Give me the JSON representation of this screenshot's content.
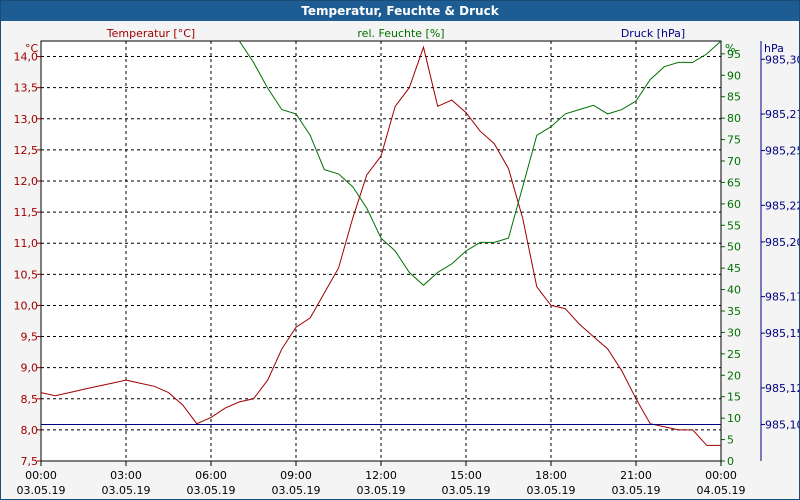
{
  "window": {
    "title": "Temperatur, Feuchte & Druck"
  },
  "colors": {
    "temperature": "#a00000",
    "humidity": "#007000",
    "pressure": "#000080",
    "titlebar": "#1e5d93"
  },
  "chart_data": {
    "type": "line",
    "title": "Temperatur, Feuchte & Druck",
    "grid": true,
    "x_ticks": [
      {
        "time": "00:00",
        "date": "03.05.19"
      },
      {
        "time": "03:00",
        "date": "03.05.19"
      },
      {
        "time": "06:00",
        "date": "03.05.19"
      },
      {
        "time": "09:00",
        "date": "03.05.19"
      },
      {
        "time": "12:00",
        "date": "03.05.19"
      },
      {
        "time": "15:00",
        "date": "03.05.19"
      },
      {
        "time": "18:00",
        "date": "03.05.19"
      },
      {
        "time": "21:00",
        "date": "03.05.19"
      },
      {
        "time": "00:00",
        "date": "04.05.19"
      }
    ],
    "xlim": [
      "03.05.19 00:00",
      "04.05.19 00:00"
    ],
    "axes": {
      "temperature": {
        "label": "Temperatur [°C]",
        "unit": "°C",
        "ylim": [
          7.5,
          14.25
        ],
        "ticks": [
          "7,5",
          "8,0",
          "8,5",
          "9,0",
          "9,5",
          "10,0",
          "10,5",
          "11,0",
          "11,5",
          "12,0",
          "12,5",
          "13,0",
          "13,5",
          "14,0"
        ]
      },
      "humidity": {
        "label": "rel. Feuchte [%]",
        "unit": "%",
        "ylim": [
          0,
          98
        ],
        "ticks": [
          "0",
          "5",
          "10",
          "15",
          "20",
          "25",
          "30",
          "35",
          "40",
          "45",
          "50",
          "55",
          "60",
          "65",
          "70",
          "75",
          "80",
          "85",
          "90",
          "95"
        ]
      },
      "pressure": {
        "label": "Druck [hPa]",
        "unit": "hPa",
        "ylim": [
          985.08,
          985.31
        ],
        "ticks": [
          "985,10",
          "985,12",
          "985,15",
          "985,17",
          "985,20",
          "985,22",
          "985,25",
          "985,27",
          "985,30"
        ]
      }
    },
    "series": [
      {
        "name": "Temperatur [°C]",
        "axis": "temperature",
        "points": [
          [
            "03.05.19 00:00",
            8.6
          ],
          [
            "03.05.19 00:30",
            8.55
          ],
          [
            "03.05.19 01:00",
            8.6
          ],
          [
            "03.05.19 01:30",
            8.65
          ],
          [
            "03.05.19 02:00",
            8.7
          ],
          [
            "03.05.19 02:30",
            8.75
          ],
          [
            "03.05.19 03:00",
            8.8
          ],
          [
            "03.05.19 03:30",
            8.75
          ],
          [
            "03.05.19 04:00",
            8.7
          ],
          [
            "03.05.19 04:30",
            8.6
          ],
          [
            "03.05.19 05:00",
            8.4
          ],
          [
            "03.05.19 05:30",
            8.1
          ],
          [
            "03.05.19 06:00",
            8.2
          ],
          [
            "03.05.19 06:30",
            8.35
          ],
          [
            "03.05.19 07:00",
            8.45
          ],
          [
            "03.05.19 07:30",
            8.5
          ],
          [
            "03.05.19 08:00",
            8.8
          ],
          [
            "03.05.19 08:30",
            9.3
          ],
          [
            "03.05.19 09:00",
            9.65
          ],
          [
            "03.05.19 09:30",
            9.8
          ],
          [
            "03.05.19 10:00",
            10.2
          ],
          [
            "03.05.19 10:30",
            10.6
          ],
          [
            "03.05.19 11:00",
            11.4
          ],
          [
            "03.05.19 11:30",
            12.1
          ],
          [
            "03.05.19 12:00",
            12.4
          ],
          [
            "03.05.19 12:30",
            13.2
          ],
          [
            "03.05.19 13:00",
            13.5
          ],
          [
            "03.05.19 13:30",
            14.15
          ],
          [
            "03.05.19 14:00",
            13.2
          ],
          [
            "03.05.19 14:30",
            13.3
          ],
          [
            "03.05.19 15:00",
            13.1
          ],
          [
            "03.05.19 15:30",
            12.8
          ],
          [
            "03.05.19 16:00",
            12.6
          ],
          [
            "03.05.19 16:30",
            12.2
          ],
          [
            "03.05.19 17:00",
            11.4
          ],
          [
            "03.05.19 17:30",
            10.3
          ],
          [
            "03.05.19 18:00",
            10.0
          ],
          [
            "03.05.19 18:30",
            9.95
          ],
          [
            "03.05.19 19:00",
            9.7
          ],
          [
            "03.05.19 19:30",
            9.5
          ],
          [
            "03.05.19 20:00",
            9.3
          ],
          [
            "03.05.19 20:30",
            8.95
          ],
          [
            "03.05.19 21:00",
            8.5
          ],
          [
            "03.05.19 21:30",
            8.1
          ],
          [
            "03.05.19 22:00",
            8.05
          ],
          [
            "03.05.19 22:30",
            8.0
          ],
          [
            "03.05.19 23:00",
            8.0
          ],
          [
            "03.05.19 23:30",
            7.75
          ],
          [
            "04.05.19 00:00",
            7.75
          ]
        ]
      },
      {
        "name": "rel. Feuchte [%]",
        "axis": "humidity",
        "points": [
          [
            "03.05.19 06:00",
            100
          ],
          [
            "03.05.19 06:30",
            100
          ],
          [
            "03.05.19 07:00",
            98
          ],
          [
            "03.05.19 07:30",
            93
          ],
          [
            "03.05.19 08:00",
            87
          ],
          [
            "03.05.19 08:30",
            82
          ],
          [
            "03.05.19 09:00",
            81
          ],
          [
            "03.05.19 09:30",
            76
          ],
          [
            "03.05.19 10:00",
            68
          ],
          [
            "03.05.19 10:30",
            67
          ],
          [
            "03.05.19 11:00",
            64
          ],
          [
            "03.05.19 11:30",
            59
          ],
          [
            "03.05.19 12:00",
            52
          ],
          [
            "03.05.19 12:30",
            49
          ],
          [
            "03.05.19 13:00",
            44
          ],
          [
            "03.05.19 13:30",
            41
          ],
          [
            "03.05.19 14:00",
            44
          ],
          [
            "03.05.19 14:30",
            46
          ],
          [
            "03.05.19 15:00",
            49
          ],
          [
            "03.05.19 15:30",
            51
          ],
          [
            "03.05.19 16:00",
            51
          ],
          [
            "03.05.19 16:30",
            52
          ],
          [
            "03.05.19 17:00",
            64
          ],
          [
            "03.05.19 17:30",
            76
          ],
          [
            "03.05.19 18:00",
            78
          ],
          [
            "03.05.19 18:30",
            81
          ],
          [
            "03.05.19 19:00",
            82
          ],
          [
            "03.05.19 19:30",
            83
          ],
          [
            "03.05.19 20:00",
            81
          ],
          [
            "03.05.19 20:30",
            82
          ],
          [
            "03.05.19 21:00",
            84
          ],
          [
            "03.05.19 21:30",
            89
          ],
          [
            "03.05.19 22:00",
            92
          ],
          [
            "03.05.19 22:30",
            93
          ],
          [
            "03.05.19 23:00",
            93
          ],
          [
            "03.05.19 23:30",
            95
          ],
          [
            "04.05.19 00:00",
            98
          ]
        ]
      },
      {
        "name": "Druck [hPa]",
        "axis": "pressure",
        "points": [
          [
            "03.05.19 00:00",
            985.1
          ],
          [
            "04.05.19 00:00",
            985.1
          ]
        ]
      }
    ]
  }
}
